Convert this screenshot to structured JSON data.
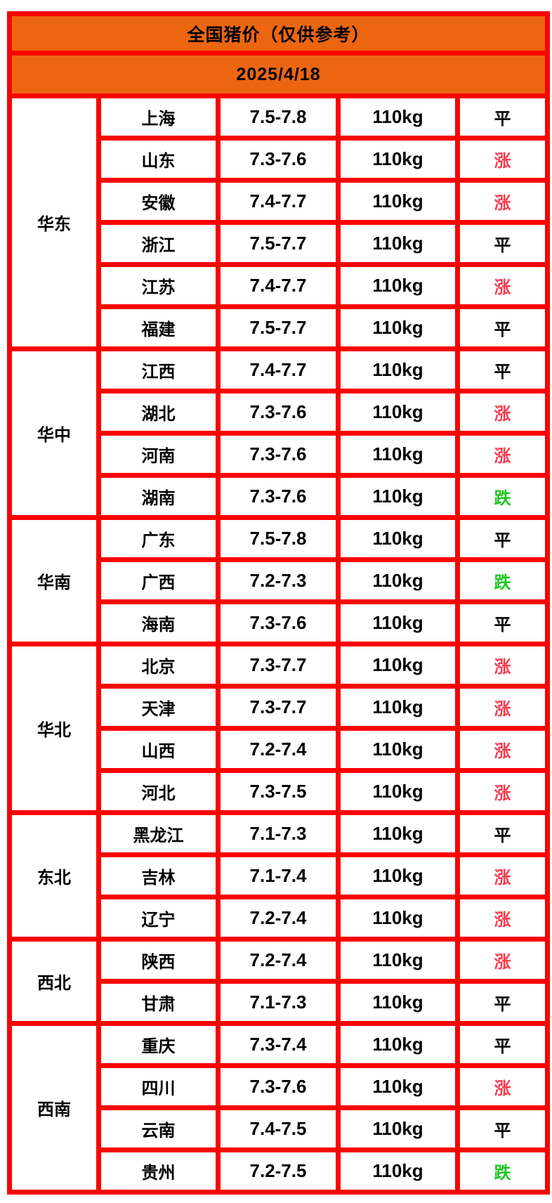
{
  "header": {
    "title": "全国猪价（仅供参考）",
    "date": "2025/4/18"
  },
  "colors": {
    "header_bg": "#ec6611",
    "grid_border": "#fa0202",
    "rise": "#fa3c50",
    "fall": "#21c421",
    "flat": "#000000"
  },
  "regions": [
    {
      "name": "华东",
      "rows": [
        {
          "province": "上海",
          "price": "7.5-7.8",
          "weight": "110kg",
          "status": "平"
        },
        {
          "province": "山东",
          "price": "7.3-7.6",
          "weight": "110kg",
          "status": "涨"
        },
        {
          "province": "安徽",
          "price": "7.4-7.7",
          "weight": "110kg",
          "status": "涨"
        },
        {
          "province": "浙江",
          "price": "7.5-7.7",
          "weight": "110kg",
          "status": "平"
        },
        {
          "province": "江苏",
          "price": "7.4-7.7",
          "weight": "110kg",
          "status": "涨"
        },
        {
          "province": "福建",
          "price": "7.5-7.7",
          "weight": "110kg",
          "status": "平"
        }
      ]
    },
    {
      "name": "华中",
      "rows": [
        {
          "province": "江西",
          "price": "7.4-7.7",
          "weight": "110kg",
          "status": "平"
        },
        {
          "province": "湖北",
          "price": "7.3-7.6",
          "weight": "110kg",
          "status": "涨"
        },
        {
          "province": "河南",
          "price": "7.3-7.6",
          "weight": "110kg",
          "status": "涨"
        },
        {
          "province": "湖南",
          "price": "7.3-7.6",
          "weight": "110kg",
          "status": "跌"
        }
      ]
    },
    {
      "name": "华南",
      "rows": [
        {
          "province": "广东",
          "price": "7.5-7.8",
          "weight": "110kg",
          "status": "平"
        },
        {
          "province": "广西",
          "price": "7.2-7.3",
          "weight": "110kg",
          "status": "跌"
        },
        {
          "province": "海南",
          "price": "7.3-7.6",
          "weight": "110kg",
          "status": "平"
        }
      ]
    },
    {
      "name": "华北",
      "rows": [
        {
          "province": "北京",
          "price": "7.3-7.7",
          "weight": "110kg",
          "status": "涨"
        },
        {
          "province": "天津",
          "price": "7.3-7.7",
          "weight": "110kg",
          "status": "涨"
        },
        {
          "province": "山西",
          "price": "7.2-7.4",
          "weight": "110kg",
          "status": "涨"
        },
        {
          "province": "河北",
          "price": "7.3-7.5",
          "weight": "110kg",
          "status": "涨"
        }
      ]
    },
    {
      "name": "东北",
      "rows": [
        {
          "province": "黑龙江",
          "price": "7.1-7.3",
          "weight": "110kg",
          "status": "平"
        },
        {
          "province": "吉林",
          "price": "7.1-7.4",
          "weight": "110kg",
          "status": "涨"
        },
        {
          "province": "辽宁",
          "price": "7.2-7.4",
          "weight": "110kg",
          "status": "涨"
        }
      ]
    },
    {
      "name": "西北",
      "rows": [
        {
          "province": "陕西",
          "price": "7.2-7.4",
          "weight": "110kg",
          "status": "涨"
        },
        {
          "province": "甘肃",
          "price": "7.1-7.3",
          "weight": "110kg",
          "status": "平"
        }
      ]
    },
    {
      "name": "西南",
      "rows": [
        {
          "province": "重庆",
          "price": "7.3-7.4",
          "weight": "110kg",
          "status": "平"
        },
        {
          "province": "四川",
          "price": "7.3-7.6",
          "weight": "110kg",
          "status": "涨"
        },
        {
          "province": "云南",
          "price": "7.4-7.5",
          "weight": "110kg",
          "status": "平"
        },
        {
          "province": "贵州",
          "price": "7.2-7.5",
          "weight": "110kg",
          "status": "跌"
        }
      ]
    }
  ]
}
